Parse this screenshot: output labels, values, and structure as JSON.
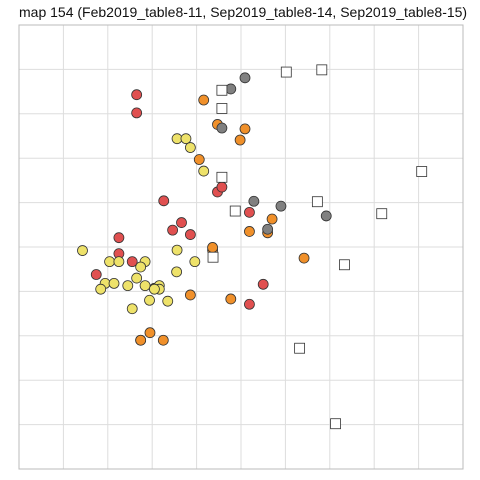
{
  "chart_data": {
    "type": "scatter",
    "title": "map 154 (Feb2019_table8-11, Sep2019_table8-14, Sep2019_table8-15)",
    "xlabel": "",
    "ylabel": "",
    "grid": true,
    "legend": "none",
    "xlim": [
      0,
      10
    ],
    "ylim": [
      0,
      10
    ],
    "colors": {
      "red": "#e05050",
      "orange": "#f0902a",
      "yellow": "#eee26a",
      "gray": "#808080",
      "square": "#ffffff",
      "outline": "#333333",
      "grid": "#dddddd",
      "frame": "#bbbbbb"
    },
    "series": [
      {
        "marker": "circle",
        "color": "red",
        "points": [
          [
            2.65,
            8.43
          ],
          [
            2.65,
            8.02
          ],
          [
            3.26,
            6.04
          ],
          [
            2.25,
            5.21
          ],
          [
            3.66,
            5.55
          ],
          [
            3.46,
            5.38
          ],
          [
            3.86,
            5.28
          ],
          [
            2.25,
            4.85
          ],
          [
            1.74,
            4.38
          ],
          [
            2.55,
            4.67
          ],
          [
            5.19,
            5.78
          ],
          [
            5.19,
            3.71
          ],
          [
            5.5,
            4.16
          ],
          [
            4.47,
            6.24
          ],
          [
            4.57,
            6.35
          ]
        ]
      },
      {
        "marker": "circle",
        "color": "orange",
        "points": [
          [
            4.16,
            8.31
          ],
          [
            4.47,
            7.76
          ],
          [
            5.09,
            7.66
          ],
          [
            4.98,
            7.41
          ],
          [
            4.06,
            6.97
          ],
          [
            5.7,
            5.63
          ],
          [
            5.19,
            5.35
          ],
          [
            5.6,
            5.32
          ],
          [
            4.36,
            4.93
          ],
          [
            4.36,
            4.99
          ],
          [
            6.42,
            4.75
          ],
          [
            4.77,
            3.83
          ],
          [
            3.86,
            3.92
          ],
          [
            3.05,
            4.07
          ],
          [
            2.95,
            3.07
          ],
          [
            3.25,
            2.9
          ],
          [
            2.74,
            2.9
          ],
          [
            2.74,
            2.9
          ]
        ]
      },
      {
        "marker": "circle",
        "color": "yellow",
        "points": [
          [
            3.56,
            7.44
          ],
          [
            3.76,
            7.44
          ],
          [
            3.86,
            7.24
          ],
          [
            4.16,
            6.71
          ],
          [
            1.43,
            4.92
          ],
          [
            2.04,
            4.67
          ],
          [
            2.25,
            4.67
          ],
          [
            2.84,
            4.67
          ],
          [
            3.56,
            4.93
          ],
          [
            3.96,
            4.67
          ],
          [
            2.74,
            4.55
          ],
          [
            3.55,
            4.44
          ],
          [
            1.94,
            4.18
          ],
          [
            2.14,
            4.18
          ],
          [
            2.45,
            4.13
          ],
          [
            2.84,
            4.13
          ],
          [
            3.16,
            4.13
          ],
          [
            3.16,
            4.05
          ],
          [
            3.05,
            4.05
          ],
          [
            1.84,
            4.05
          ],
          [
            2.65,
            4.3
          ],
          [
            2.94,
            3.8
          ],
          [
            3.35,
            3.78
          ],
          [
            2.55,
            3.61
          ]
        ]
      },
      {
        "marker": "circle",
        "color": "gray",
        "points": [
          [
            5.09,
            8.81
          ],
          [
            4.77,
            8.56
          ],
          [
            4.57,
            7.68
          ],
          [
            5.29,
            6.03
          ],
          [
            5.9,
            5.92
          ],
          [
            6.92,
            5.7
          ],
          [
            5.6,
            5.4
          ]
        ]
      },
      {
        "marker": "square",
        "color": "square",
        "points": [
          [
            6.02,
            8.94
          ],
          [
            6.82,
            8.99
          ],
          [
            4.57,
            8.53
          ],
          [
            4.57,
            8.12
          ],
          [
            4.57,
            6.57
          ],
          [
            4.87,
            5.81
          ],
          [
            6.72,
            6.02
          ],
          [
            8.17,
            5.75
          ],
          [
            9.07,
            6.7
          ],
          [
            7.33,
            4.6
          ],
          [
            4.37,
            4.77
          ],
          [
            6.32,
            2.72
          ],
          [
            7.13,
            1.02
          ]
        ]
      }
    ]
  }
}
